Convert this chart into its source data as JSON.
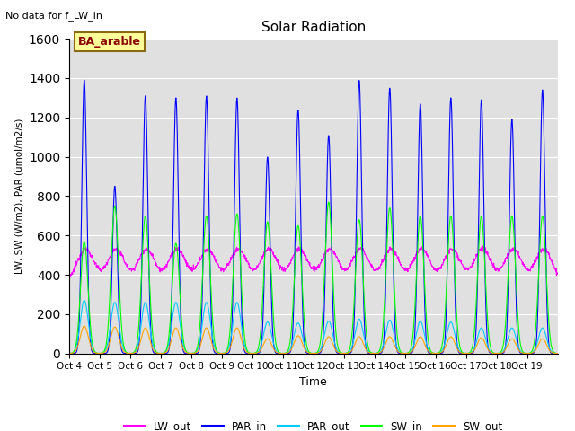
{
  "title": "Solar Radiation",
  "xlabel": "Time",
  "ylabel": "LW, SW (W/m2), PAR (umol/m2/s)",
  "note": "No data for f_LW_in",
  "legend_label": "BA_arable",
  "ylim": [
    0,
    1600
  ],
  "yticks": [
    0,
    200,
    400,
    600,
    800,
    1000,
    1200,
    1400,
    1600
  ],
  "xtick_labels": [
    "Oct 4",
    "Oct 5",
    "Oct 6",
    "Oct 7",
    "Oct 8",
    "Oct 9",
    "Oct 10",
    "Oct 11",
    "Oct 12",
    "Oct 13",
    "Oct 14",
    "Oct 15",
    "Oct 16",
    "Oct 17",
    "Oct 18",
    "Oct 19"
  ],
  "colors": {
    "LW_out": "#ff00ff",
    "PAR_in": "#0000ff",
    "PAR_out": "#00ccff",
    "SW_in": "#00ff00",
    "SW_out": "#ffa500"
  },
  "background_color": "#e0e0e0",
  "n_days": 15,
  "day_peak_PAR_in": [
    1390,
    850,
    1310,
    1300,
    1310,
    1300,
    1000,
    1240,
    1110,
    1390,
    1350,
    1270,
    1300,
    1290,
    1190,
    1340
  ],
  "day_peak_SW_in": [
    570,
    750,
    700,
    560,
    700,
    710,
    670,
    650,
    770,
    680,
    740,
    700,
    700,
    700,
    700,
    700
  ],
  "day_peak_PAR_out": [
    270,
    260,
    260,
    260,
    260,
    260,
    160,
    155,
    165,
    175,
    170,
    165,
    160,
    130,
    130,
    130
  ],
  "day_peak_SW_out": [
    140,
    135,
    130,
    130,
    130,
    130,
    75,
    90,
    85,
    85,
    85,
    85,
    85,
    80,
    75,
    75
  ],
  "LW_base": 355,
  "LW_day_boost": 175
}
